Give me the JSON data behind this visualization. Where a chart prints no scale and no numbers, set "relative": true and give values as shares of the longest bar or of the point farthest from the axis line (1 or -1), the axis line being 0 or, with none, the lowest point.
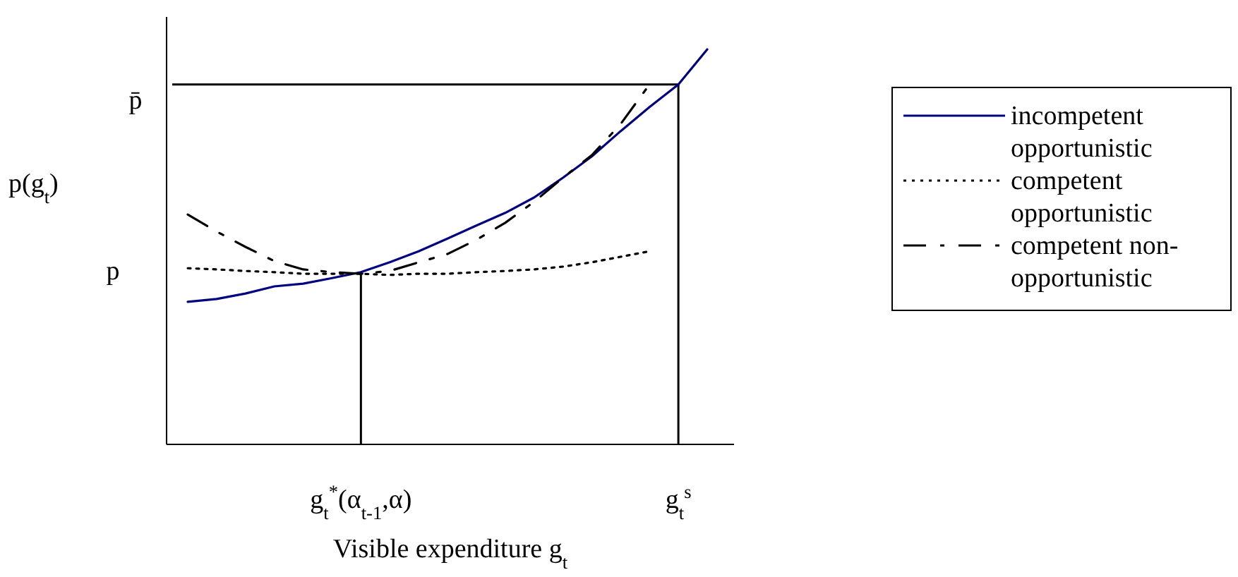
{
  "chart_data": {
    "type": "line",
    "relative": true,
    "xlabel": "Visible expenditure g$_{t}$",
    "ylabel": "p(g$_{t}$)",
    "categories": [
      null,
      null,
      null,
      null,
      null,
      null,
      "g$_{t}$$^{*}$(α$_{t-1}$,α)",
      null,
      null,
      null,
      null,
      null,
      null,
      null,
      null,
      null,
      null,
      "g$_{t}$$^{s}$",
      null
    ],
    "series": [
      {
        "name": "incompetent opportunistic",
        "color": "#000080",
        "line_style": "solid",
        "values": [
          0.361,
          0.368,
          0.382,
          0.4,
          0.407,
          0.421,
          0.436,
          0.461,
          0.489,
          0.521,
          0.554,
          0.586,
          0.625,
          0.675,
          0.729,
          0.793,
          0.854,
          0.911,
          1
        ]
      },
      {
        "name": "competent opportunistic",
        "color": "#000000",
        "line_style": "dotted",
        "values": [
          0.446,
          0.443,
          0.439,
          0.436,
          0.432,
          0.432,
          0.432,
          0.429,
          0.432,
          0.432,
          0.436,
          0.439,
          0.443,
          0.45,
          0.461,
          0.475,
          0.489,
          null,
          null
        ]
      },
      {
        "name": "competent non-opportunistic",
        "color": "#000000",
        "line_style": "dashed",
        "values": [
          0.582,
          0.539,
          0.5,
          0.464,
          0.443,
          0.436,
          0.432,
          0.439,
          0.461,
          0.482,
          0.518,
          0.561,
          0.614,
          0.675,
          0.732,
          0.811,
          0.911,
          null,
          null
        ]
      }
    ],
    "ref_lines": [
      {
        "axis": "y",
        "value": 0.911,
        "label": "p̄"
      },
      {
        "axis": "x",
        "value": "g$_{t}$$^{*}$(α$_{t-1}$,α)"
      },
      {
        "axis": "x",
        "value": "g$_{t}$$^{s}$"
      }
    ],
    "annotations": [
      "p"
    ],
    "legend": "right",
    "grid": false
  }
}
